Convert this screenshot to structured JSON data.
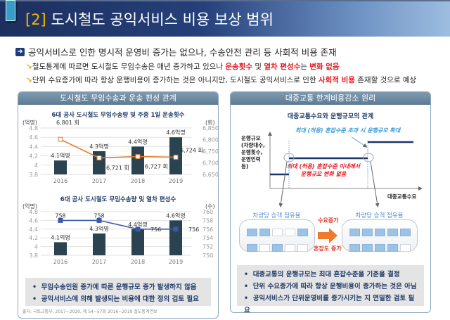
{
  "header": {
    "number": "[2]",
    "title": "도시철도 공익서비스 비용 보상 범위"
  },
  "bullets": {
    "main": "공익서비스로 인한 명시적 운영비 증가는 없으나, 수송안전 관리 등 사회적 비용 존재",
    "sub1": {
      "a": "철도통계에 따르면 도시철도 무임수송은 매년 증가하고 있으나 ",
      "r1": "운송횟수",
      "b": " 및 ",
      "r2": "열차 편성수",
      "c": "는 ",
      "r3": "변화 없음"
    },
    "sub2": {
      "a": "단위 수요증가에 따라 항상 운행비용이 증가하는 것은 아니지만, 도시철도 공익서비스로 인한 ",
      "r1": "사회적 비용",
      "b": " 존재할 것으로 예상"
    }
  },
  "left_panel": {
    "title": "도시철도 무임수송과 운송 편성 관계",
    "notes": [
      "무임수송인원 증가에 따른 운행규모 증가 발생하지 않음",
      "공익서비스에 의해 발생되는 비용에 대한 정의 검토 필요"
    ],
    "source": "출처: 국토교통부, 2017~2020, 제 54~57회 2016~2019 철도통계연보"
  },
  "chart_data": [
    {
      "type": "bar+line",
      "title": "6대 공사 도시철도 무임수송량 및 주중 1일 운송횟수",
      "categories": [
        "2016",
        "2017",
        "2018",
        "2019"
      ],
      "y_left": {
        "label": "(억명)",
        "ylim": [
          3.8,
          4.8
        ],
        "ticks": [
          "3.8",
          "4",
          "4.2",
          "4.4",
          "4.6",
          "4.8"
        ]
      },
      "y_right": {
        "label": "(회)",
        "ylim": [
          6650,
          6850
        ],
        "ticks": [
          "6,650",
          "6,700",
          "6,750",
          "6,800",
          "6,850"
        ]
      },
      "series": [
        {
          "type": "bar",
          "values": [
            4.1,
            4.3,
            4.4,
            4.6
          ],
          "labels": [
            "4.1억명",
            "4.3억명",
            "4.4억명",
            "4.6억명"
          ],
          "color": "#2b4350"
        },
        {
          "type": "line",
          "axis": "right",
          "values": [
            6801,
            6721,
            6727,
            6724
          ],
          "labels": [
            "6,801 회",
            "6,721 회",
            "6,727 회",
            "6,724 회"
          ],
          "color": "#e07a2a"
        }
      ]
    },
    {
      "type": "bar+line",
      "title": "6대 공사 도시철도 무임수송량 및 열차 편성수",
      "categories": [
        "2016",
        "2017",
        "2018",
        "2019"
      ],
      "y_left": {
        "label": "(억명)",
        "ylim": [
          3.8,
          4.8
        ],
        "ticks": [
          "3.8",
          "4",
          "4.2",
          "4.4",
          "4.6",
          "4.8"
        ]
      },
      "y_right": {
        "label": "(수)",
        "ylim": [
          750,
          760
        ],
        "ticks": [
          "750",
          "752",
          "754",
          "756",
          "758",
          "760"
        ]
      },
      "series": [
        {
          "type": "bar",
          "values": [
            4.1,
            4.3,
            4.4,
            4.6
          ],
          "labels": [
            "4.1억명",
            "4.3억명",
            "4.4억명",
            "4.6억명"
          ],
          "color": "#2b4350"
        },
        {
          "type": "line",
          "axis": "right",
          "values": [
            758,
            758,
            756,
            756
          ],
          "labels": [
            "758",
            "758",
            "756",
            "756"
          ],
          "color": "#3a5aa8"
        }
      ]
    }
  ],
  "right_panel": {
    "title": "대중교통 한계비용감소 원리",
    "diagram_title": "대중교통수요와 운행규모의 관계",
    "y_label": [
      "운행규모",
      "(차량대수,",
      "운행횟수,",
      "운영인력",
      "등)"
    ],
    "x_label": "대중교통수요",
    "blue_note": "최대 (허용) 혼잡수준 초과 시 운행규모 확대",
    "red_note": [
      "최대 (허용) 혼잡수준 이내에서",
      "운행규모 변화 없음"
    ],
    "left_caption": "차량당 승객 점유율",
    "right_caption": "차량당 승객 점유율",
    "arrow_top": "수요증가",
    "arrow_bottom": "혼잡도 증가",
    "left_seats": [
      [
        1,
        1,
        0,
        0,
        1
      ],
      [
        1,
        0,
        1,
        0,
        0
      ]
    ],
    "right_seats": [
      [
        1,
        1,
        1,
        1,
        1
      ],
      [
        1,
        1,
        1,
        1,
        0
      ]
    ],
    "notes": [
      "대중교통의 운행규모는 최대 혼잡수준을 기준을 결정",
      "단위 수요증가에 따라 항상 운행비용이 증가하는 것은 아님",
      "공익서비스가 단위운영비를 증가시키는 지 면밀한 검토 필요"
    ]
  }
}
